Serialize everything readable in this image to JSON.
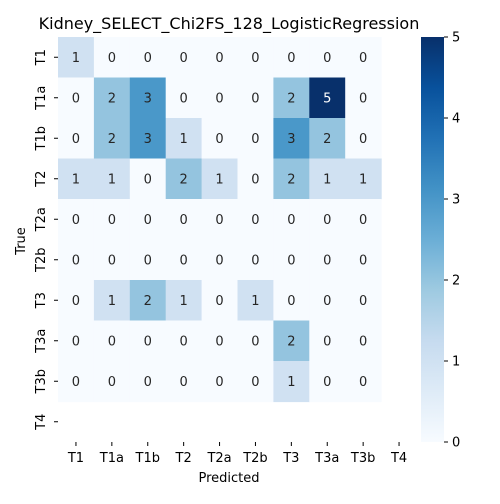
{
  "chart_data": {
    "type": "heatmap",
    "title": "Kidney_SELECT_Chi2FS_128_LogisticRegression",
    "xlabel": "Predicted",
    "ylabel": "True",
    "x_categories": [
      "T1",
      "T1a",
      "T1b",
      "T2",
      "T2a",
      "T2b",
      "T3",
      "T3a",
      "T3b",
      "T4"
    ],
    "y_categories": [
      "T1",
      "T1a",
      "T1b",
      "T2",
      "T2a",
      "T2b",
      "T3",
      "T3a",
      "T3b",
      "T4"
    ],
    "values": [
      [
        1,
        0,
        0,
        0,
        0,
        0,
        0,
        0,
        0,
        null
      ],
      [
        0,
        2,
        3,
        0,
        0,
        0,
        2,
        5,
        0,
        null
      ],
      [
        0,
        2,
        3,
        1,
        0,
        0,
        3,
        2,
        0,
        null
      ],
      [
        1,
        1,
        0,
        2,
        1,
        0,
        2,
        1,
        1,
        null
      ],
      [
        0,
        0,
        0,
        0,
        0,
        0,
        0,
        0,
        0,
        null
      ],
      [
        0,
        0,
        0,
        0,
        0,
        0,
        0,
        0,
        0,
        null
      ],
      [
        0,
        1,
        2,
        1,
        0,
        1,
        0,
        0,
        0,
        null
      ],
      [
        0,
        0,
        0,
        0,
        0,
        0,
        2,
        0,
        0,
        null
      ],
      [
        0,
        0,
        0,
        0,
        0,
        0,
        1,
        0,
        0,
        null
      ],
      [
        null,
        null,
        null,
        null,
        null,
        null,
        null,
        null,
        null,
        null
      ]
    ],
    "colorbar": {
      "min": 0,
      "max": 5,
      "ticks": [
        "0",
        "1",
        "2",
        "3",
        "4",
        "5"
      ]
    },
    "colormap": [
      "#f7fbff",
      "#deebf7",
      "#c6dbef",
      "#9ecae1",
      "#6baed6",
      "#4292c6",
      "#2171b5",
      "#08519c",
      "#08306b"
    ]
  }
}
